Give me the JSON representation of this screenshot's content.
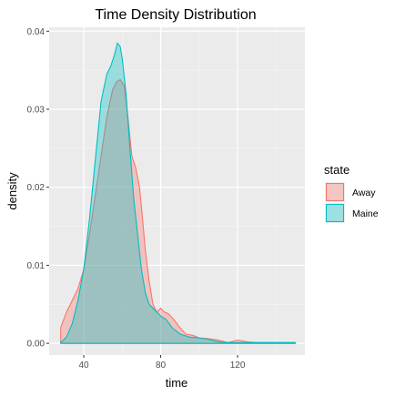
{
  "chart_data": {
    "type": "area",
    "title": "Time Density Distribution",
    "xlabel": "time",
    "ylabel": "density",
    "xlim": [
      22,
      155
    ],
    "ylim": [
      -0.0015,
      0.0405
    ],
    "x_ticks": [
      40,
      80,
      120
    ],
    "x_tick_labels": [
      "40",
      "80",
      "120"
    ],
    "y_ticks": [
      0.0,
      0.01,
      0.02,
      0.03,
      0.04
    ],
    "y_tick_labels": [
      "0.00",
      "0.01",
      "0.02",
      "0.03",
      "0.04"
    ],
    "grid": true,
    "legend": {
      "title": "state",
      "position": "right",
      "entries": [
        "Away",
        "Maine"
      ]
    },
    "series": [
      {
        "name": "Away",
        "color": "#F8766D",
        "fill": "#F8766D",
        "points": [
          [
            28,
            0.002
          ],
          [
            31,
            0.004
          ],
          [
            34,
            0.0055
          ],
          [
            37,
            0.007
          ],
          [
            40,
            0.0095
          ],
          [
            43,
            0.014
          ],
          [
            46,
            0.019
          ],
          [
            49,
            0.024
          ],
          [
            52,
            0.029
          ],
          [
            55,
            0.0325
          ],
          [
            57,
            0.0335
          ],
          [
            59,
            0.0338
          ],
          [
            61,
            0.033
          ],
          [
            63,
            0.029
          ],
          [
            65,
            0.024
          ],
          [
            67,
            0.0225
          ],
          [
            69,
            0.02
          ],
          [
            70,
            0.0175
          ],
          [
            72,
            0.012
          ],
          [
            74,
            0.008
          ],
          [
            76,
            0.005
          ],
          [
            78,
            0.004
          ],
          [
            80,
            0.0045
          ],
          [
            82,
            0.004
          ],
          [
            84,
            0.0038
          ],
          [
            87,
            0.003
          ],
          [
            90,
            0.002
          ],
          [
            93,
            0.0012
          ],
          [
            97,
            0.001
          ],
          [
            100,
            0.0007
          ],
          [
            105,
            0.0006
          ],
          [
            110,
            0.0004
          ],
          [
            115,
            0.0001
          ],
          [
            120,
            0.0004
          ],
          [
            125,
            0.0002
          ],
          [
            130,
            0.0001
          ],
          [
            140,
            0.0001
          ],
          [
            150,
            0.0001
          ]
        ]
      },
      {
        "name": "Maine",
        "color": "#00BFC4",
        "fill": "#00BFC4",
        "points": [
          [
            28,
            0.0001
          ],
          [
            31,
            0.0008
          ],
          [
            34,
            0.0025
          ],
          [
            37,
            0.0055
          ],
          [
            40,
            0.0095
          ],
          [
            43,
            0.016
          ],
          [
            46,
            0.0235
          ],
          [
            49,
            0.031
          ],
          [
            52,
            0.0345
          ],
          [
            54,
            0.0355
          ],
          [
            56,
            0.037
          ],
          [
            57.5,
            0.0385
          ],
          [
            59,
            0.038
          ],
          [
            60,
            0.0365
          ],
          [
            62,
            0.032
          ],
          [
            64,
            0.025
          ],
          [
            66,
            0.0185
          ],
          [
            68,
            0.014
          ],
          [
            70,
            0.0095
          ],
          [
            72,
            0.0065
          ],
          [
            74,
            0.005
          ],
          [
            76,
            0.0045
          ],
          [
            78,
            0.004
          ],
          [
            80,
            0.0035
          ],
          [
            83,
            0.003
          ],
          [
            86,
            0.002
          ],
          [
            90,
            0.0012
          ],
          [
            95,
            0.0008
          ],
          [
            100,
            0.0007
          ],
          [
            105,
            0.0005
          ],
          [
            110,
            0.0002
          ],
          [
            115,
            0.0001
          ],
          [
            120,
            0.0001
          ],
          [
            130,
            0.0001
          ],
          [
            140,
            0.0001
          ],
          [
            150,
            0.0001
          ]
        ]
      }
    ]
  }
}
